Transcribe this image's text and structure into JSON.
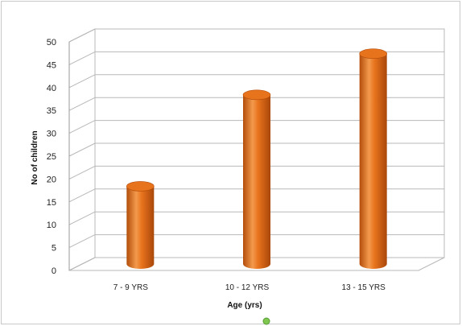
{
  "chart_data": {
    "type": "bar",
    "style": "3d-cylinder",
    "categories": [
      "7 - 9 YRS",
      "10 - 12 YRS",
      "13 - 15 YRS"
    ],
    "values": [
      17,
      37,
      46
    ],
    "xlabel": "Age (yrs)",
    "ylabel": "No of children",
    "ylim": [
      0,
      50
    ],
    "yticks": [
      0,
      5,
      10,
      15,
      20,
      25,
      30,
      35,
      40,
      45,
      50
    ],
    "grid": true,
    "legend": "none",
    "colors": {
      "bar": "#e8731d",
      "bar_dark": "#b34d0a",
      "bar_light": "#f7a25a",
      "grid": "#b8b8b8",
      "marker": "#7ec850"
    }
  }
}
